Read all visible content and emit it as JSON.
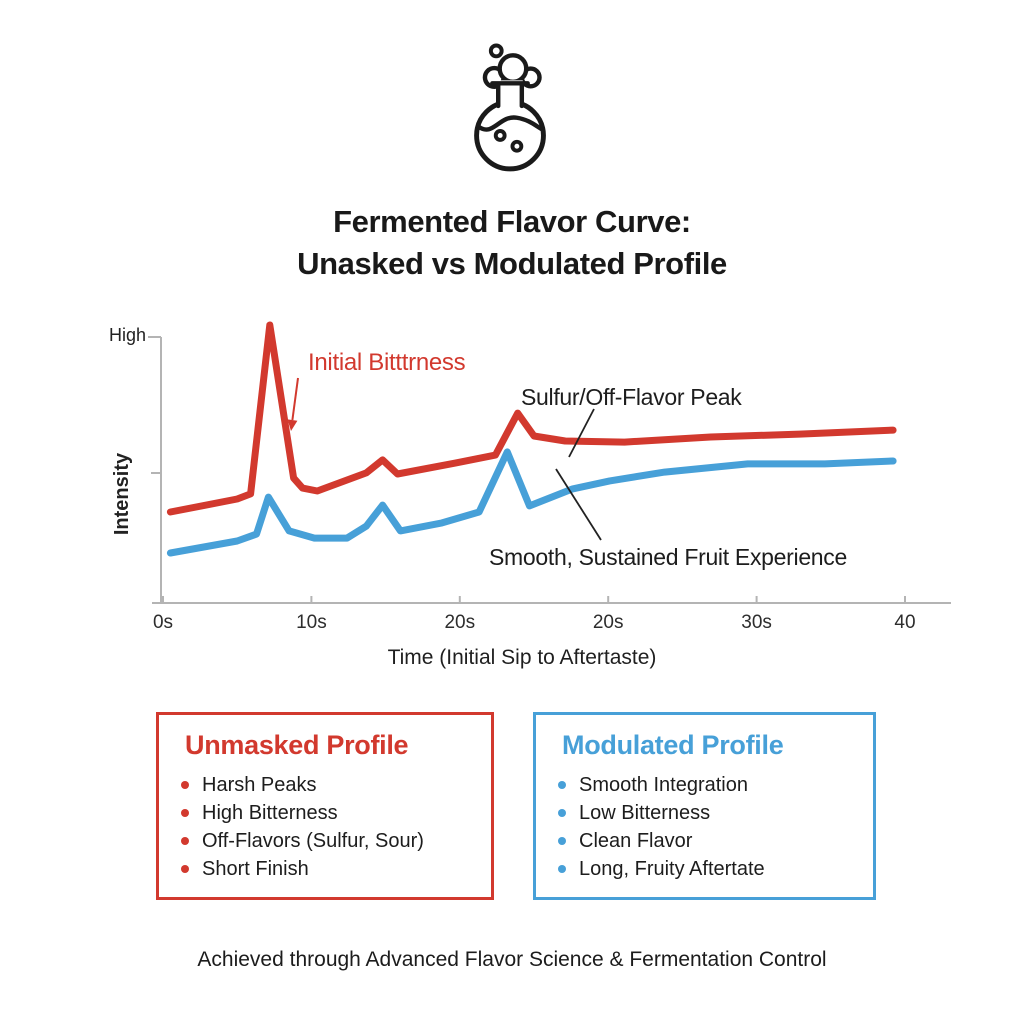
{
  "header": {
    "title_line1": "Fermented Flavor Curve:",
    "title_line2": "Unasked vs Modulated Profile"
  },
  "icon": {
    "name": "flask-with-bubbles",
    "color": "#1a1a1a"
  },
  "colors": {
    "red": "#d2392e",
    "blue": "#47a0d8",
    "axis": "#b4b4b4",
    "text": "#1b1b1b"
  },
  "chart_data": {
    "type": "line",
    "title": "",
    "xlabel": "Time (Initial Sip to Aftertaste)",
    "ylabel": "Intensity",
    "y_high_label": "High",
    "x_tick_labels": [
      "0s",
      "10s",
      "20s",
      "20s",
      "30s",
      "40"
    ],
    "ylim": [
      0,
      1
    ],
    "grid": false,
    "legend_position": "none",
    "series": [
      {
        "name": "Unmasked Profile",
        "color": "#d2392e",
        "points": [
          [
            0.5,
            0.342
          ],
          [
            5.0,
            0.391
          ],
          [
            5.9,
            0.41
          ],
          [
            7.2,
            1.045
          ],
          [
            8.8,
            0.47
          ],
          [
            9.4,
            0.432
          ],
          [
            10.4,
            0.421
          ],
          [
            13.7,
            0.489
          ],
          [
            14.8,
            0.538
          ],
          [
            15.8,
            0.485
          ],
          [
            19.7,
            0.526
          ],
          [
            22.4,
            0.556
          ],
          [
            23.9,
            0.714
          ],
          [
            25.0,
            0.628
          ],
          [
            27.1,
            0.609
          ],
          [
            31.1,
            0.605
          ],
          [
            36.9,
            0.624
          ],
          [
            42.9,
            0.635
          ],
          [
            49.2,
            0.65
          ]
        ]
      },
      {
        "name": "Modulated Profile",
        "color": "#47a0d8",
        "points": [
          [
            0.5,
            0.188
          ],
          [
            5.0,
            0.233
          ],
          [
            6.3,
            0.259
          ],
          [
            7.1,
            0.398
          ],
          [
            8.5,
            0.271
          ],
          [
            10.2,
            0.244
          ],
          [
            12.4,
            0.244
          ],
          [
            13.7,
            0.289
          ],
          [
            14.8,
            0.368
          ],
          [
            16.0,
            0.271
          ],
          [
            18.8,
            0.301
          ],
          [
            21.3,
            0.342
          ],
          [
            23.2,
            0.568
          ],
          [
            24.7,
            0.365
          ],
          [
            27.6,
            0.429
          ],
          [
            30.1,
            0.459
          ],
          [
            33.8,
            0.492
          ],
          [
            39.4,
            0.523
          ],
          [
            44.6,
            0.523
          ],
          [
            49.2,
            0.534
          ]
        ]
      }
    ],
    "annotations": [
      {
        "text": "Initial Bitttrness",
        "color": "#d2392e",
        "target": "unmasked first peak"
      },
      {
        "text": "Sulfur/Off-Flavor Peak",
        "color": "#1d1d1d",
        "target": "unmasked second peak"
      },
      {
        "text": "Smooth, Sustained Fruit Experience",
        "color": "#1d1d1d",
        "target": "modulated curve"
      }
    ]
  },
  "legend_boxes": [
    {
      "title": "Unmasked Profile",
      "color": "#d2392e",
      "items": [
        "Harsh Peaks",
        "High Bitterness",
        "Off-Flavors (Sulfur, Sour)",
        "Short Finish"
      ]
    },
    {
      "title": "Modulated Profile",
      "color": "#47a0d8",
      "items": [
        "Smooth Integration",
        "Low Bitterness",
        "Clean Flavor",
        "Long, Fruity Aftertate"
      ]
    }
  ],
  "footer": {
    "text": "Achieved through Advanced Flavor Science & Fermentation Control"
  }
}
